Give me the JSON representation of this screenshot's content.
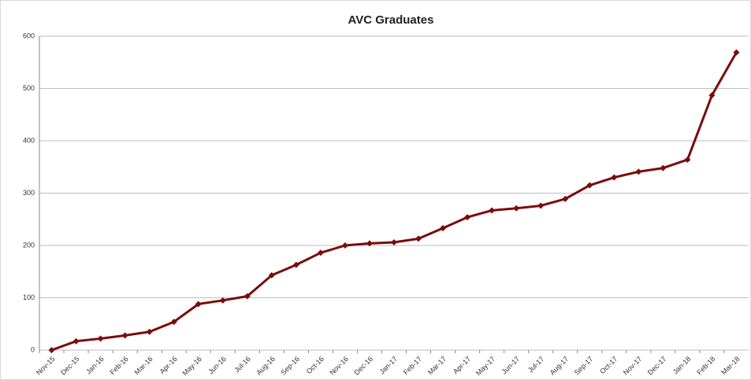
{
  "chart_data": {
    "type": "line",
    "title": "AVC Graduates",
    "categories": [
      "Nov-15",
      "Dec-15",
      "Jan-16",
      "Feb-16",
      "Mar-16",
      "Apr-16",
      "May-16",
      "Jun-16",
      "Jul-16",
      "Aug-16",
      "Sep-16",
      "Oct-16",
      "Nov-16",
      "Dec-16",
      "Jan-17",
      "Feb-17",
      "Mar-17",
      "Apr-17",
      "May-17",
      "Jun-17",
      "Jul-17",
      "Aug-17",
      "Sep-17",
      "Oct-17",
      "Nov-17",
      "Dec-17",
      "Jan-18",
      "Feb-18",
      "Mar-18"
    ],
    "values": [
      0,
      17,
      22,
      28,
      35,
      54,
      88,
      95,
      103,
      143,
      163,
      186,
      200,
      204,
      206,
      213,
      233,
      254,
      267,
      271,
      276,
      289,
      315,
      330,
      341,
      348,
      364,
      487,
      569
    ],
    "color": "#7a0c0c",
    "ylim": [
      0,
      600
    ],
    "yticks": [
      0,
      100,
      200,
      300,
      400,
      500,
      600
    ],
    "grid": true
  }
}
